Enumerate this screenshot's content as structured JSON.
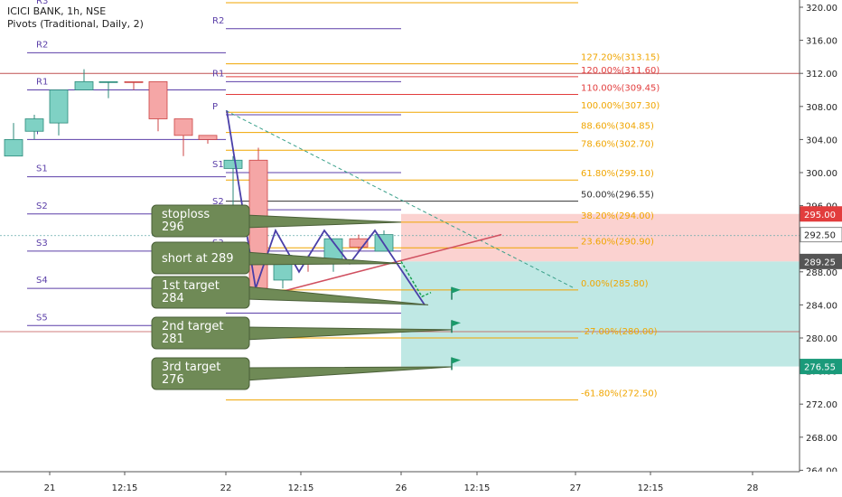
{
  "header": {
    "symbol": "ICICI BANK, 1h, NSE",
    "indicator": "Pivots (Traditional, Daily, 2)"
  },
  "colors": {
    "pivot_line": "#5b3fa8",
    "fib_line": "#f0a500",
    "fib_red": "#e23d3d",
    "candle_up": "#7fd1c4",
    "candle_down": "#f5a6a6",
    "red_zone": "#fbd2d0",
    "green_zone": "#bfe8e4",
    "callout_bg": "#6f8a56",
    "wave_line": "#4a3fa8",
    "target_green": "#1a9a6a"
  },
  "chart_data": {
    "type": "candlestick",
    "title": "ICICI BANK, 1h, NSE",
    "ylim": [
      263,
      320.6
    ],
    "y_ticks": [
      "320.00",
      "316.00",
      "312.00",
      "308.00",
      "304.00",
      "300.00",
      "296.00",
      "292.00",
      "288.00",
      "284.00",
      "280.00",
      "276.00",
      "272.00",
      "268.00",
      "264.00"
    ],
    "y_tick_values": [
      320,
      316,
      312,
      308,
      304,
      300,
      296,
      292,
      288,
      284,
      280,
      276,
      272,
      268,
      264
    ],
    "x_ticks": [
      "21",
      "12:15",
      "22",
      "12:15",
      "26",
      "12:15",
      "27",
      "12:15",
      "28"
    ],
    "candles": [
      {
        "o": 302,
        "h": 306,
        "l": 302,
        "c": 304,
        "up": true
      },
      {
        "o": 305,
        "h": 307,
        "l": 304,
        "c": 306.5,
        "up": true
      },
      {
        "o": 306,
        "h": 310,
        "l": 304.5,
        "c": 310,
        "up": true
      },
      {
        "o": 310,
        "h": 312.5,
        "l": 310,
        "c": 311,
        "up": true
      },
      {
        "o": 311,
        "h": 311,
        "l": 309,
        "c": 311,
        "up": true
      },
      {
        "o": 311,
        "h": 311,
        "l": 310,
        "c": 311,
        "up": false
      },
      {
        "o": 311,
        "h": 311,
        "l": 305,
        "c": 306.5,
        "up": false
      },
      {
        "o": 306.5,
        "h": 306.5,
        "l": 302,
        "c": 304.5,
        "up": false
      },
      {
        "o": 304.5,
        "h": 304.5,
        "l": 303.5,
        "c": 304,
        "up": false
      },
      {
        "o": 300.5,
        "h": 302,
        "l": 296,
        "c": 301.5,
        "up": true
      },
      {
        "o": 301.5,
        "h": 303,
        "l": 286,
        "c": 286,
        "up": false
      },
      {
        "o": 287,
        "h": 290,
        "l": 286,
        "c": 290,
        "up": true
      },
      {
        "o": 289,
        "h": 290,
        "l": 288,
        "c": 289.5,
        "up": false
      },
      {
        "o": 289,
        "h": 292,
        "l": 288,
        "c": 292,
        "up": true
      },
      {
        "o": 292,
        "h": 292.5,
        "l": 290.5,
        "c": 291,
        "up": false
      },
      {
        "o": 290.5,
        "h": 293,
        "l": 290.5,
        "c": 292.5,
        "up": true
      }
    ],
    "pivots_day1": [
      {
        "label": "R2",
        "value": 314.5
      },
      {
        "label": "R1",
        "value": 310
      },
      {
        "label": "P",
        "value": 304
      },
      {
        "label": "S1",
        "value": 299.5
      },
      {
        "label": "S2",
        "value": 295
      },
      {
        "label": "S3",
        "value": 290.5
      },
      {
        "label": "S4",
        "value": 286
      },
      {
        "label": "S5",
        "value": 281.5
      }
    ],
    "pivots_day2": [
      {
        "label": "R2",
        "value": 317.4
      },
      {
        "label": "R1",
        "value": 311
      },
      {
        "label": "P",
        "value": 307
      },
      {
        "label": "S1",
        "value": 300
      },
      {
        "label": "S2",
        "value": 295.5
      },
      {
        "label": "S3",
        "value": 290.5
      },
      {
        "label": "S4",
        "value": 283
      }
    ],
    "pivot_r3_label": "R3",
    "horizontal_line": 312,
    "fib_levels": [
      {
        "label": "127.20%(313.15)",
        "value": 313.15,
        "color": "fib"
      },
      {
        "label": "120.00%(311.60)",
        "value": 311.6,
        "color": "red"
      },
      {
        "label": "110.00%(309.45)",
        "value": 309.45,
        "color": "red"
      },
      {
        "label": "100.00%(307.30)",
        "value": 307.3,
        "color": "fib"
      },
      {
        "label": "88.60%(304.85)",
        "value": 304.85,
        "color": "fib"
      },
      {
        "label": "78.60%(302.70)",
        "value": 302.7,
        "color": "fib"
      },
      {
        "label": "61.80%(299.10)",
        "value": 299.1,
        "color": "fib"
      },
      {
        "label": "50.00%(296.55)",
        "value": 296.55,
        "color": "dark"
      },
      {
        "label": "38.20%(294.00)",
        "value": 294,
        "color": "fib"
      },
      {
        "label": "23.60%(290.90)",
        "value": 290.9,
        "color": "fib"
      },
      {
        "label": "0.00%(285.80)",
        "value": 285.8,
        "color": "fib"
      },
      {
        "label": "-27.00%(280.00)",
        "value": 280,
        "color": "fib"
      },
      {
        "label": "-61.80%(272.50)",
        "value": 272.5,
        "color": "fib"
      }
    ],
    "price_tags": [
      {
        "label": "295.00",
        "value": 295,
        "bg": "#e23d3d"
      },
      {
        "label": "292.50",
        "value": 292.5,
        "bg": "#ffffff"
      },
      {
        "label": "289.25",
        "value": 289.25,
        "bg": "#555555"
      },
      {
        "label": "276.55",
        "value": 276.55,
        "bg": "#1a9a7a"
      }
    ],
    "position": {
      "stop": 295,
      "entry": 289.25,
      "target": 276.55
    },
    "callouts": [
      {
        "l1": "stoploss",
        "l2": "296",
        "target_value": 294
      },
      {
        "l1": "short at 289",
        "l2": "",
        "target_value": 289
      },
      {
        "l1": "1st target",
        "l2": "284",
        "target_value": 284
      },
      {
        "l1": "2nd target",
        "l2": "281",
        "target_value": 281
      },
      {
        "l1": "3rd target",
        "l2": "276",
        "target_value": 276.5
      }
    ],
    "wave_points": [
      [
        0,
        307.5
      ],
      [
        1,
        286
      ],
      [
        2,
        293
      ],
      [
        3,
        288
      ],
      [
        4,
        293
      ],
      [
        5,
        289
      ],
      [
        6,
        293
      ],
      [
        7,
        284
      ]
    ],
    "flags": [
      285.5,
      281.5,
      277
    ]
  }
}
